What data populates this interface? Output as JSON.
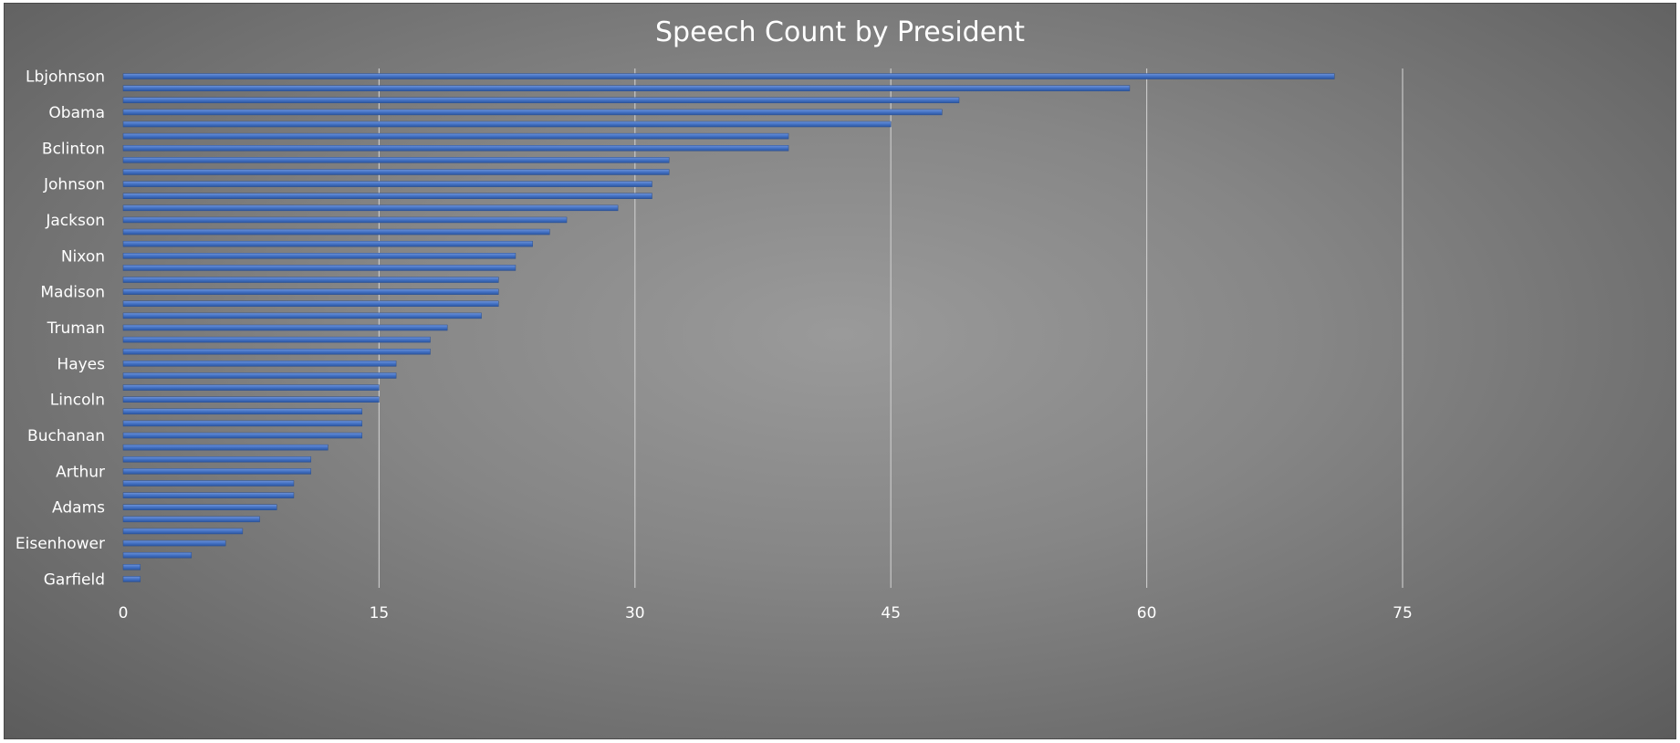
{
  "chart_data": {
    "type": "bar",
    "orientation": "horizontal",
    "title": "Speech Count by President",
    "xlabel": "",
    "ylabel": "",
    "xlim": [
      0,
      75
    ],
    "x_ticks": [
      "0",
      "15",
      "30",
      "45",
      "60",
      "75"
    ],
    "categories": [
      "Lbjohnson",
      "",
      "",
      "Obama",
      "",
      "",
      "Bclinton",
      "",
      "",
      "Johnson",
      "",
      "",
      "Jackson",
      "",
      "",
      "Nixon",
      "",
      "",
      "Madison",
      "",
      "",
      "Truman",
      "",
      "",
      "Hayes",
      "",
      "",
      "Lincoln",
      "",
      "",
      "Buchanan",
      "",
      "",
      "Arthur",
      "",
      "",
      "Adams",
      "",
      "",
      "Eisenhower",
      "",
      "",
      "Garfield"
    ],
    "values": [
      71,
      59,
      49,
      48,
      45,
      39,
      39,
      32,
      32,
      31,
      31,
      29,
      26,
      25,
      24,
      23,
      23,
      22,
      22,
      22,
      21,
      19,
      18,
      18,
      16,
      16,
      15,
      15,
      14,
      14,
      14,
      12,
      11,
      11,
      10,
      10,
      9,
      8,
      7,
      6,
      4,
      1,
      1
    ],
    "grid": true,
    "legend": "none",
    "bar_color": "#4472c4",
    "title_color": "#ffffff",
    "label_color": "#ffffff",
    "grid_color": "#c8c8c8"
  }
}
